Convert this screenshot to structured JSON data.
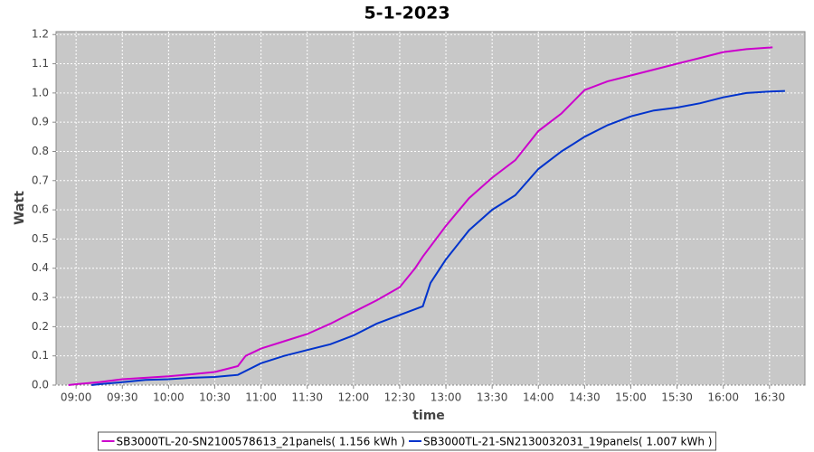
{
  "chart_data": {
    "type": "line",
    "title": "5-1-2023",
    "x_label": "time",
    "y_label": "Watt",
    "xlim": [
      "08:47",
      "16:53"
    ],
    "xticks": [
      "09:00",
      "09:30",
      "10:00",
      "10:30",
      "11:00",
      "11:30",
      "12:00",
      "12:30",
      "13:00",
      "13:30",
      "14:00",
      "14:30",
      "15:00",
      "15:30",
      "16:00",
      "16:30"
    ],
    "ylim": [
      0,
      1.21
    ],
    "yticks": [
      {
        "value": 0,
        "label": "0.0"
      },
      0.1,
      0.2,
      0.3,
      0.4,
      0.5,
      0.6,
      0.7,
      0.8,
      0.9,
      {
        "value": 1,
        "label": "1.0"
      },
      1.1,
      1.2
    ],
    "grid": true,
    "legend": "bottom",
    "series": [
      {
        "name": "SB3000TL-20-SN2100578613_21panels( 1.156 kWh )",
        "color": "#cc00cc",
        "x": [
          "08:55",
          "09:00",
          "09:15",
          "09:30",
          "09:45",
          "10:00",
          "10:15",
          "10:30",
          "10:45",
          "10:50",
          "11:00",
          "11:15",
          "11:30",
          "11:45",
          "12:00",
          "12:15",
          "12:30",
          "12:40",
          "12:45",
          "13:00",
          "13:15",
          "13:30",
          "13:45",
          "14:00",
          "14:15",
          "14:30",
          "14:45",
          "15:00",
          "15:15",
          "15:30",
          "15:45",
          "16:00",
          "16:15",
          "16:32"
        ],
        "values": [
          0.0,
          0.003,
          0.01,
          0.02,
          0.025,
          0.03,
          0.037,
          0.045,
          0.065,
          0.1,
          0.125,
          0.15,
          0.175,
          0.21,
          0.25,
          0.29,
          0.335,
          0.4,
          0.44,
          0.545,
          0.64,
          0.71,
          0.77,
          0.87,
          0.93,
          1.01,
          1.04,
          1.06,
          1.08,
          1.1,
          1.12,
          1.14,
          1.15,
          1.156
        ]
      },
      {
        "name": "SB3000TL-21-SN2130032031_19panels( 1.007 kWh )",
        "color": "#0033cc",
        "x": [
          "09:10",
          "09:15",
          "09:30",
          "09:45",
          "10:00",
          "10:15",
          "10:30",
          "10:45",
          "11:00",
          "11:15",
          "11:30",
          "11:45",
          "12:00",
          "12:15",
          "12:30",
          "12:45",
          "12:50",
          "13:00",
          "13:15",
          "13:30",
          "13:45",
          "14:00",
          "14:15",
          "14:30",
          "14:45",
          "15:00",
          "15:15",
          "15:30",
          "15:45",
          "16:00",
          "16:15",
          "16:30",
          "16:40"
        ],
        "values": [
          0.0,
          0.003,
          0.01,
          0.018,
          0.02,
          0.025,
          0.028,
          0.035,
          0.075,
          0.1,
          0.12,
          0.14,
          0.17,
          0.21,
          0.24,
          0.27,
          0.35,
          0.43,
          0.53,
          0.6,
          0.65,
          0.74,
          0.8,
          0.85,
          0.89,
          0.92,
          0.94,
          0.95,
          0.965,
          0.985,
          1.0,
          1.005,
          1.007
        ]
      }
    ]
  }
}
